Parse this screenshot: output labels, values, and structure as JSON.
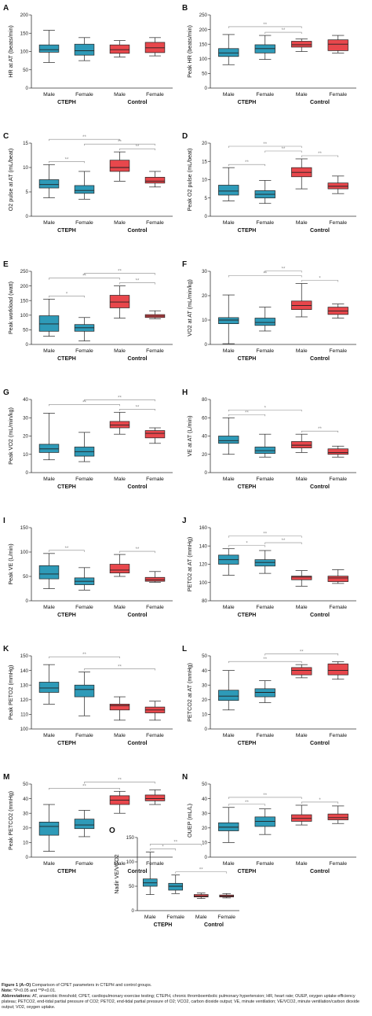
{
  "colors": {
    "cteph": "#2E9AB8",
    "control": "#E8474C",
    "sig": "#888888",
    "axis": "#333333"
  },
  "chart_data": [
    {
      "id": "A",
      "type": "box",
      "ylabel": "HR at AT (beats/min)",
      "ylim": [
        0,
        200
      ],
      "yticks": [
        0,
        50,
        100,
        150,
        200
      ],
      "categories": [
        "Male",
        "Female",
        "Male",
        "Female"
      ],
      "groups": [
        "CTEPH",
        "Control"
      ],
      "boxes": [
        [
          70,
          98,
          105,
          118,
          158
        ],
        [
          75,
          90,
          102,
          120,
          138
        ],
        [
          85,
          95,
          105,
          118,
          130
        ],
        [
          88,
          97,
          110,
          125,
          138
        ]
      ],
      "sig": []
    },
    {
      "id": "B",
      "type": "box",
      "ylabel": "Peak HR (beats/min)",
      "ylim": [
        0,
        250
      ],
      "yticks": [
        0,
        50,
        100,
        150,
        200,
        250
      ],
      "categories": [
        "Male",
        "Female",
        "Male",
        "Female"
      ],
      "groups": [
        "CTEPH",
        "Control"
      ],
      "boxes": [
        [
          80,
          108,
          120,
          135,
          183
        ],
        [
          98,
          120,
          135,
          148,
          180
        ],
        [
          125,
          140,
          148,
          160,
          168
        ],
        [
          120,
          128,
          150,
          165,
          180
        ]
      ],
      "sig": [
        {
          "from": 0,
          "to": 2,
          "label": "**",
          "level": 2
        },
        {
          "from": 1,
          "to": 2,
          "label": "**",
          "level": 1
        }
      ]
    },
    {
      "id": "C",
      "type": "box",
      "ylabel": "O2 pulse at AT (mL/beat)",
      "ylim": [
        0,
        15
      ],
      "yticks": [
        0,
        5,
        10,
        15
      ],
      "categories": [
        "Male",
        "Female",
        "Male",
        "Female"
      ],
      "groups": [
        "CTEPH",
        "Control"
      ],
      "boxes": [
        [
          3.8,
          5.8,
          6.5,
          7.5,
          10.6
        ],
        [
          3.5,
          4.7,
          5.3,
          6.3,
          9.2
        ],
        [
          7.2,
          9.2,
          10,
          11.5,
          13.2
        ],
        [
          6,
          6.8,
          7.2,
          8,
          9.2
        ]
      ],
      "sig": [
        {
          "from": 0,
          "to": 1,
          "label": "**",
          "level": 1
        },
        {
          "from": 0,
          "to": 2,
          "label": "**",
          "level": 3
        },
        {
          "from": 1,
          "to": 3,
          "label": "**",
          "level": 2
        },
        {
          "from": 2,
          "to": 3,
          "label": "**",
          "level": 1
        }
      ]
    },
    {
      "id": "D",
      "type": "box",
      "ylabel": "Peak O2 pulse (mL/beat)",
      "ylim": [
        0,
        20
      ],
      "yticks": [
        0,
        5,
        10,
        15,
        20
      ],
      "categories": [
        "Male",
        "Female",
        "Male",
        "Female"
      ],
      "groups": [
        "CTEPH",
        "Control"
      ],
      "boxes": [
        [
          4.2,
          5.8,
          6.9,
          8.5,
          13.3
        ],
        [
          3.5,
          5,
          6,
          7,
          9.8
        ],
        [
          7.5,
          10.8,
          12,
          13.3,
          15.7
        ],
        [
          6.2,
          7.5,
          8.2,
          9.1,
          11
        ]
      ],
      "sig": [
        {
          "from": 0,
          "to": 1,
          "label": "**",
          "level": 1
        },
        {
          "from": 0,
          "to": 2,
          "label": "**",
          "level": 3
        },
        {
          "from": 1,
          "to": 2,
          "label": "**",
          "level": 2
        },
        {
          "from": 2,
          "to": 3,
          "label": "**",
          "level": 1
        }
      ]
    },
    {
      "id": "E",
      "type": "box",
      "ylabel": "Peak workload (watt)",
      "ylim": [
        0,
        250
      ],
      "yticks": [
        0,
        50,
        100,
        150,
        200,
        250
      ],
      "categories": [
        "Male",
        "Female",
        "Male",
        "Female"
      ],
      "groups": [
        "CTEPH",
        "Control"
      ],
      "boxes": [
        [
          28,
          45,
          70,
          98,
          155
        ],
        [
          12,
          45,
          57,
          68,
          92
        ],
        [
          90,
          125,
          145,
          168,
          200
        ],
        [
          88,
          92,
          97,
          102,
          115
        ]
      ],
      "sig": [
        {
          "from": 0,
          "to": 1,
          "label": "*",
          "level": 1
        },
        {
          "from": 0,
          "to": 2,
          "label": "**",
          "level": 2
        },
        {
          "from": 1,
          "to": 3,
          "label": "**",
          "level": 3
        },
        {
          "from": 2,
          "to": 3,
          "label": "**",
          "level": 1
        }
      ]
    },
    {
      "id": "F",
      "type": "box",
      "ylabel": "VO2 at AT (mL/min/kg)",
      "ylim": [
        0,
        30
      ],
      "yticks": [
        0,
        10,
        20,
        30
      ],
      "categories": [
        "Male",
        "Female",
        "Male",
        "Female"
      ],
      "groups": [
        "CTEPH",
        "Control"
      ],
      "boxes": [
        [
          0.3,
          8.5,
          10,
          11,
          20.3
        ],
        [
          5.5,
          7.8,
          9,
          10.8,
          15.3
        ],
        [
          11.3,
          14.3,
          16,
          17.8,
          25
        ],
        [
          10.8,
          12.3,
          13.7,
          15.3,
          16.6
        ]
      ],
      "sig": [
        {
          "from": 0,
          "to": 2,
          "label": "**",
          "level": 2
        },
        {
          "from": 1,
          "to": 2,
          "label": "**",
          "level": 3
        },
        {
          "from": 2,
          "to": 3,
          "label": "*",
          "level": 1
        }
      ]
    },
    {
      "id": "G",
      "type": "box",
      "ylabel": "Peak VO2 (mL/min/kg)",
      "ylim": [
        0,
        40
      ],
      "yticks": [
        0,
        10,
        20,
        30,
        40
      ],
      "categories": [
        "Male",
        "Female",
        "Male",
        "Female"
      ],
      "groups": [
        "CTEPH",
        "Control"
      ],
      "boxes": [
        [
          7,
          11,
          13,
          15.5,
          32.5
        ],
        [
          6,
          9,
          11.5,
          14,
          22
        ],
        [
          21,
          24.5,
          26,
          28,
          33
        ],
        [
          16,
          19,
          21.5,
          23,
          24.5
        ]
      ],
      "sig": [
        {
          "from": 0,
          "to": 2,
          "label": "**",
          "level": 2
        },
        {
          "from": 1,
          "to": 3,
          "label": "**",
          "level": 3
        },
        {
          "from": 2,
          "to": 3,
          "label": "**",
          "level": 1
        }
      ]
    },
    {
      "id": "H",
      "type": "box",
      "ylabel": "VE at AT (L/min)",
      "ylim": [
        0,
        80
      ],
      "yticks": [
        0,
        20,
        40,
        60,
        80
      ],
      "categories": [
        "Male",
        "Female",
        "Male",
        "Female"
      ],
      "groups": [
        "CTEPH",
        "Control"
      ],
      "boxes": [
        [
          20,
          32,
          35,
          40,
          60
        ],
        [
          17,
          21,
          24,
          28,
          42
        ],
        [
          22,
          27,
          30,
          34,
          42
        ],
        [
          17,
          20,
          22,
          26,
          29
        ]
      ],
      "sig": [
        {
          "from": 0,
          "to": 1,
          "label": "**",
          "level": 1
        },
        {
          "from": 0,
          "to": 2,
          "label": "*",
          "level": 2
        },
        {
          "from": 2,
          "to": 3,
          "label": "**",
          "level": 1
        }
      ]
    },
    {
      "id": "I",
      "type": "box",
      "ylabel": "Peak VE (L/min)",
      "ylim": [
        0,
        150
      ],
      "yticks": [
        0,
        50,
        100,
        150
      ],
      "categories": [
        "Male",
        "Female",
        "Male",
        "Female"
      ],
      "groups": [
        "CTEPH",
        "Control"
      ],
      "boxes": [
        [
          25,
          45,
          55,
          72,
          97
        ],
        [
          22,
          33,
          40,
          47,
          68
        ],
        [
          50,
          57,
          63,
          75,
          95
        ],
        [
          38,
          40,
          43,
          48,
          60
        ]
      ],
      "sig": [
        {
          "from": 0,
          "to": 1,
          "label": "**",
          "level": 1
        },
        {
          "from": 2,
          "to": 3,
          "label": "**",
          "level": 1
        }
      ]
    },
    {
      "id": "J",
      "type": "box",
      "ylabel": "PETO2 at AT (mmHg)",
      "ylim": [
        80,
        160
      ],
      "yticks": [
        80,
        100,
        120,
        140,
        160
      ],
      "categories": [
        "Male",
        "Female",
        "Male",
        "Female"
      ],
      "groups": [
        "CTEPH",
        "Control"
      ],
      "boxes": [
        [
          108,
          120,
          125,
          130,
          137
        ],
        [
          110,
          118,
          122,
          125,
          135
        ],
        [
          96,
          103,
          106,
          107,
          113
        ],
        [
          99,
          101,
          105,
          107,
          114
        ]
      ],
      "sig": [
        {
          "from": 0,
          "to": 1,
          "label": "*",
          "level": 1
        },
        {
          "from": 0,
          "to": 2,
          "label": "**",
          "level": 3
        },
        {
          "from": 1,
          "to": 2,
          "label": "**",
          "level": 2
        }
      ]
    },
    {
      "id": "K",
      "type": "box",
      "ylabel": "Peak PETO2 (mmHg)",
      "ylim": [
        100,
        150
      ],
      "yticks": [
        100,
        110,
        120,
        130,
        140,
        150
      ],
      "categories": [
        "Male",
        "Female",
        "Male",
        "Female"
      ],
      "groups": [
        "CTEPH",
        "Control"
      ],
      "boxes": [
        [
          117,
          125,
          128,
          132,
          144
        ],
        [
          109,
          122,
          127,
          130,
          139
        ],
        [
          106,
          113,
          116,
          117,
          122
        ],
        [
          106,
          111,
          113,
          115,
          119
        ]
      ],
      "sig": [
        {
          "from": 0,
          "to": 2,
          "label": "**",
          "level": 2
        },
        {
          "from": 1,
          "to": 3,
          "label": "**",
          "level": 1
        }
      ]
    },
    {
      "id": "L",
      "type": "box",
      "ylabel": "PETCO2 at AT (mmHg)",
      "ylim": [
        0,
        50
      ],
      "yticks": [
        0,
        10,
        20,
        30,
        40,
        50
      ],
      "categories": [
        "Male",
        "Female",
        "Male",
        "Female"
      ],
      "groups": [
        "CTEPH",
        "Control"
      ],
      "boxes": [
        [
          13,
          19.5,
          22.5,
          26.5,
          40
        ],
        [
          18,
          22,
          25,
          27.5,
          33
        ],
        [
          35,
          37,
          40,
          42,
          44
        ],
        [
          34,
          37,
          40,
          44.5,
          46
        ]
      ],
      "sig": [
        {
          "from": 0,
          "to": 2,
          "label": "**",
          "level": 1
        },
        {
          "from": 1,
          "to": 3,
          "label": "**",
          "level": 2
        }
      ]
    },
    {
      "id": "M",
      "type": "box",
      "ylabel": "Peak PETCO2 (mmHg)",
      "ylim": [
        0,
        50
      ],
      "yticks": [
        0,
        10,
        20,
        30,
        40,
        50
      ],
      "categories": [
        "Male",
        "Female",
        "Male",
        "Female"
      ],
      "groups": [
        "CTEPH",
        "Control"
      ],
      "boxes": [
        [
          4,
          15,
          21,
          24,
          36
        ],
        [
          14,
          19.5,
          22,
          26,
          32
        ],
        [
          30,
          36,
          39,
          42,
          45
        ],
        [
          36,
          38.5,
          40,
          42.5,
          46
        ]
      ],
      "sig": [
        {
          "from": 0,
          "to": 2,
          "label": "**",
          "level": 1
        },
        {
          "from": 1,
          "to": 3,
          "label": "**",
          "level": 2
        }
      ]
    },
    {
      "id": "N",
      "type": "box",
      "ylabel": "OUEP (mL/L)",
      "ylim": [
        0,
        50
      ],
      "yticks": [
        0,
        10,
        20,
        30,
        40,
        50
      ],
      "categories": [
        "Male",
        "Female",
        "Male",
        "Female"
      ],
      "groups": [
        "CTEPH",
        "Control"
      ],
      "boxes": [
        [
          10,
          18,
          20.5,
          23.5,
          34
        ],
        [
          15.5,
          21,
          24.5,
          27.5,
          33
        ],
        [
          22,
          24.5,
          26.5,
          29,
          35.5
        ],
        [
          23,
          25.5,
          27,
          29.5,
          35
        ]
      ],
      "sig": [
        {
          "from": 0,
          "to": 1,
          "label": "**",
          "level": 1
        },
        {
          "from": 0,
          "to": 2,
          "label": "**",
          "level": 2
        },
        {
          "from": 2,
          "to": 3,
          "label": "*",
          "level": 1
        }
      ]
    },
    {
      "id": "O",
      "type": "box",
      "ylabel": "Nadir VE/VCO2",
      "ylim": [
        0,
        150
      ],
      "yticks": [
        0,
        50,
        100,
        150
      ],
      "categories": [
        "Male",
        "Female",
        "Male",
        "Female"
      ],
      "groups": [
        "CTEPH",
        "Control"
      ],
      "boxes": [
        [
          33,
          50,
          57,
          65,
          120
        ],
        [
          35,
          42,
          50,
          56,
          73
        ],
        [
          25,
          28,
          30,
          33,
          36
        ],
        [
          26,
          28,
          30,
          32,
          35
        ]
      ],
      "sig": [
        {
          "from": 0,
          "to": 1,
          "label": "*",
          "level": 1
        },
        {
          "from": 0,
          "to": 2,
          "label": "**",
          "level": 2
        },
        {
          "from": 1,
          "to": 3,
          "label": "**",
          "level": 1
        }
      ]
    }
  ],
  "caption": {
    "title_bold": "Figure 1 (A–O)",
    "title_rest": " Comparison of CPET parameters in CTEPH and control groups.",
    "note_bold": "Note:",
    "note_rest": " *P<0.05 and **P<0.01.",
    "abbr_bold": "Abbreviations:",
    "abbr_rest": " AT, anaerobic threshold; CPET, cardiopulmonary exercise testing; CTEPH, chronic thromboembolic pulmonary hypertension; HR, heart rate; OUEP, oxygen uptake efficiency plateau; PETCO2, end-tidal partial pressure of CO2; PETO2, end-tidal partial pressure of O2; VCO2, carbon dioxide output; VE, minute ventilation; VE/VCO2, minute ventilation/carbon dioxide output; VO2, oxygen uptake."
  }
}
